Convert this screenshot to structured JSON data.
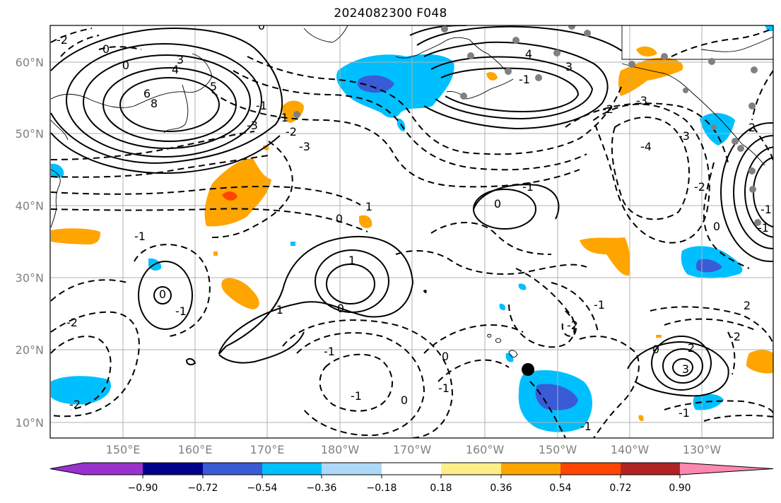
{
  "title": "2024082300 F048",
  "map": {
    "lon_ticks": [
      "150°E",
      "160°E",
      "170°E",
      "180°W",
      "170°W",
      "160°W",
      "150°W",
      "140°W",
      "130°W"
    ],
    "lat_ticks": [
      "60°N",
      "50°N",
      "40°N",
      "30°N",
      "20°N",
      "10°N"
    ],
    "contour_labels": [
      "-2",
      "0",
      "0",
      "3",
      "4",
      "6",
      "8",
      "5",
      "-1",
      "-3",
      "0",
      "-1",
      "-2",
      "-3",
      "4",
      "3",
      "-1",
      "-2",
      "-3",
      "-4",
      "-3",
      "-2",
      "0",
      "-1",
      "-1",
      "2",
      "1",
      "0",
      "1",
      "0",
      "-1",
      "0",
      "-1",
      "0",
      "-1",
      "-2",
      "-1",
      "-1",
      "-2",
      "0",
      "-1",
      "0",
      "-1",
      "-2",
      "0",
      "2",
      "3",
      "-1",
      "2",
      "-2",
      "-1",
      "-1"
    ]
  },
  "colorbar": {
    "ticks": [
      "−0.90",
      "−0.72",
      "−0.54",
      "−0.36",
      "−0.18",
      "0.18",
      "0.36",
      "0.54",
      "0.72",
      "0.90"
    ],
    "colors": [
      "#9932cc",
      "#00008b",
      "#3a5bd6",
      "#00bfff",
      "#add8f7",
      "#ffffff",
      "#ffee88",
      "#ffa500",
      "#ff4500",
      "#b22222",
      "#ff88b0"
    ]
  }
}
